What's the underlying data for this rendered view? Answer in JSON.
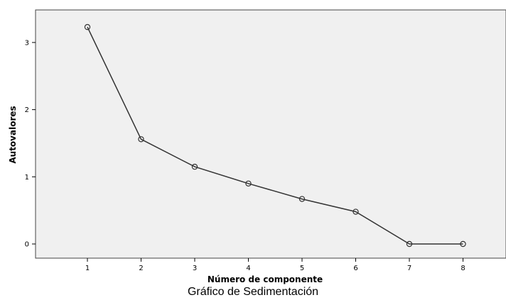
{
  "chart_data": {
    "type": "line",
    "caption": "Gráfico de Sedimentación",
    "xlabel": "Número de componente",
    "ylabel": "Autovalores",
    "x": [
      1,
      2,
      3,
      4,
      5,
      6,
      7,
      8
    ],
    "xticks": [
      "1",
      "2",
      "3",
      "4",
      "5",
      "6",
      "7",
      "8"
    ],
    "yticks": [
      "0",
      "1",
      "2",
      "3"
    ],
    "series": [
      {
        "values": [
          3.23,
          1.56,
          1.15,
          0.9,
          0.67,
          0.48,
          0.0,
          0.0
        ]
      }
    ],
    "ylim": [
      -0.15,
      3.5
    ],
    "grid": false,
    "colors": {
      "plot_background": "#f0f0f0",
      "line": "#333333",
      "marker": "#333333"
    }
  }
}
